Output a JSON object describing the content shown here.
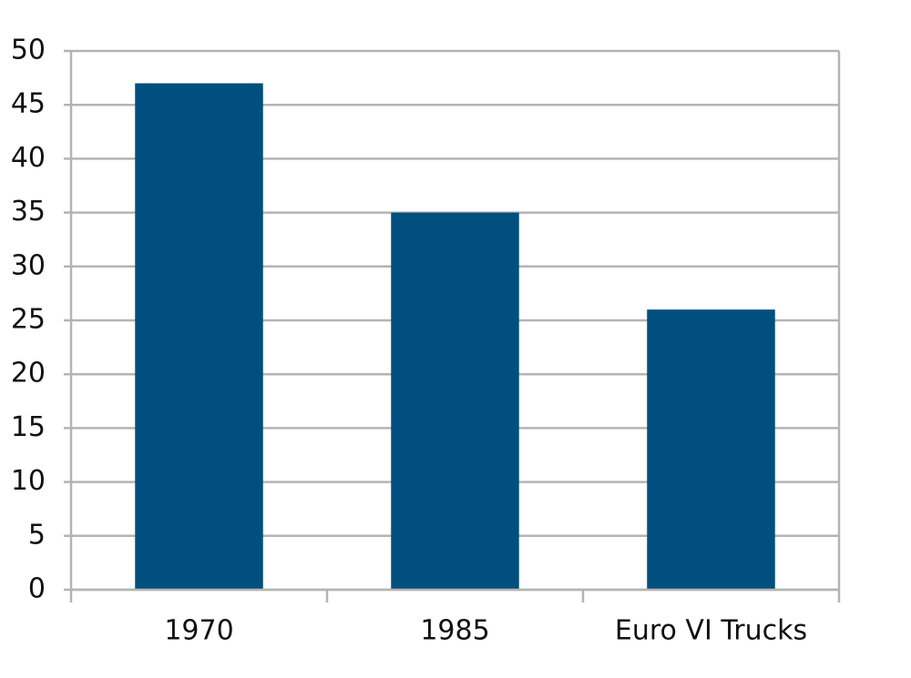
{
  "chart_data": {
    "type": "bar",
    "categories": [
      "1970",
      "1985",
      "Euro VI Trucks"
    ],
    "values": [
      47,
      35,
      26
    ],
    "color": "#004f7f",
    "ylim": [
      0,
      50
    ],
    "yticks": [
      0,
      5,
      10,
      15,
      20,
      25,
      30,
      35,
      40,
      45,
      50
    ],
    "grid": true
  }
}
